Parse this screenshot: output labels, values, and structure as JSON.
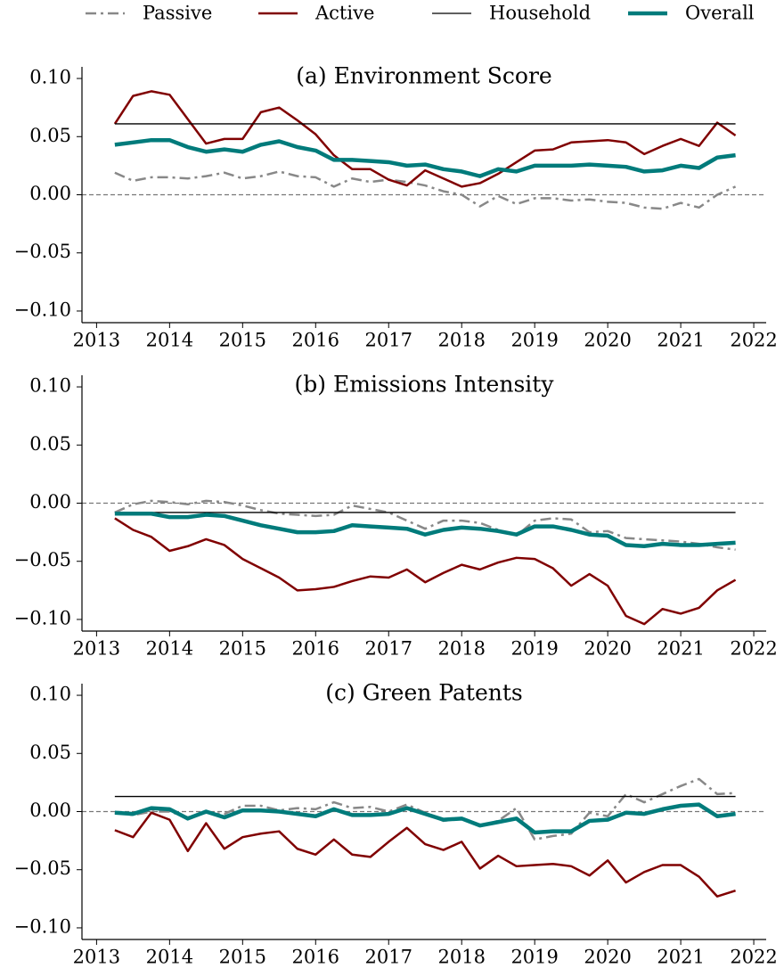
{
  "legend": {
    "ncol": 4
  },
  "chart_data": [
    {
      "type": "line",
      "title": "(a) Environment Score",
      "x": [
        2013.25,
        2013.5,
        2013.75,
        2014,
        2014.25,
        2014.5,
        2014.75,
        2015,
        2015.25,
        2015.5,
        2015.75,
        2016,
        2016.25,
        2016.5,
        2016.75,
        2017,
        2017.25,
        2017.5,
        2017.75,
        2018,
        2018.25,
        2018.5,
        2018.75,
        2019,
        2019.25,
        2019.5,
        2019.75,
        2020,
        2020.25,
        2020.5,
        2020.75,
        2021,
        2021.25,
        2021.5,
        2021.75
      ],
      "xlim": [
        2012.8,
        2022.17
      ],
      "xticks": [
        2013,
        2014,
        2015,
        2016,
        2017,
        2018,
        2019,
        2020,
        2021,
        2022
      ],
      "ylim": [
        -0.11,
        0.11
      ],
      "yticks": [
        {
          "value": -0.1,
          "label": "−0.10"
        },
        {
          "value": -0.05,
          "label": "−0.05"
        },
        {
          "value": 0,
          "label": "0.00"
        },
        {
          "value": 0.05,
          "label": "0.05"
        },
        {
          "value": 0.1,
          "label": "0.10"
        }
      ],
      "zero_line": true,
      "series": [
        {
          "name": "Passive",
          "color": "#888888",
          "linestyle": "dashdot",
          "linewidth": 2.5,
          "values": [
            0.019,
            0.012,
            0.015,
            0.015,
            0.014,
            0.016,
            0.019,
            0.014,
            0.016,
            0.02,
            0.016,
            0.015,
            0.007,
            0.014,
            0.011,
            0.013,
            0.011,
            0.008,
            0.003,
            0.0,
            -0.01,
            -0.001,
            -0.008,
            -0.003,
            -0.003,
            -0.005,
            -0.004,
            -0.006,
            -0.007,
            -0.011,
            -0.012,
            -0.007,
            -0.011,
            0.0,
            0.007
          ]
        },
        {
          "name": "Active",
          "color": "#800000",
          "linestyle": "solid",
          "linewidth": 2.5,
          "values": [
            0.061,
            0.085,
            0.089,
            0.086,
            0.065,
            0.044,
            0.048,
            0.048,
            0.071,
            0.075,
            0.064,
            0.052,
            0.034,
            0.022,
            0.022,
            0.013,
            0.008,
            0.021,
            0.014,
            0.007,
            0.01,
            0.018,
            0.028,
            0.038,
            0.039,
            0.045,
            0.046,
            0.047,
            0.045,
            0.035,
            0.042,
            0.048,
            0.042,
            0.062,
            0.051
          ]
        },
        {
          "name": "Household",
          "color": "#000000",
          "linestyle": "solid",
          "linewidth": 1.3,
          "values": [
            0.061,
            0.061,
            0.061,
            0.061,
            0.061,
            0.061,
            0.061,
            0.061,
            0.061,
            0.061,
            0.061,
            0.061,
            0.061,
            0.061,
            0.061,
            0.061,
            0.061,
            0.061,
            0.061,
            0.061,
            0.061,
            0.061,
            0.061,
            0.061,
            0.061,
            0.061,
            0.061,
            0.061,
            0.061,
            0.061,
            0.061,
            0.061,
            0.061,
            0.061,
            0.061
          ]
        },
        {
          "name": "Overall",
          "color": "#007b7b",
          "linestyle": "solid",
          "linewidth": 4.5,
          "values": [
            0.043,
            0.045,
            0.047,
            0.047,
            0.041,
            0.037,
            0.039,
            0.037,
            0.043,
            0.046,
            0.041,
            0.038,
            0.03,
            0.03,
            0.029,
            0.028,
            0.025,
            0.026,
            0.022,
            0.02,
            0.016,
            0.022,
            0.02,
            0.025,
            0.025,
            0.025,
            0.026,
            0.025,
            0.024,
            0.02,
            0.021,
            0.025,
            0.023,
            0.032,
            0.034
          ]
        }
      ]
    },
    {
      "type": "line",
      "title": "(b) Emissions Intensity",
      "x": [
        2013.25,
        2013.5,
        2013.75,
        2014,
        2014.25,
        2014.5,
        2014.75,
        2015,
        2015.25,
        2015.5,
        2015.75,
        2016,
        2016.25,
        2016.5,
        2016.75,
        2017,
        2017.25,
        2017.5,
        2017.75,
        2018,
        2018.25,
        2018.5,
        2018.75,
        2019,
        2019.25,
        2019.5,
        2019.75,
        2020,
        2020.25,
        2020.5,
        2020.75,
        2021,
        2021.25,
        2021.5,
        2021.75
      ],
      "xlim": [
        2012.8,
        2022.17
      ],
      "xticks": [
        2013,
        2014,
        2015,
        2016,
        2017,
        2018,
        2019,
        2020,
        2021,
        2022
      ],
      "ylim": [
        -0.11,
        0.11
      ],
      "yticks": [
        {
          "value": -0.1,
          "label": "−0.10"
        },
        {
          "value": -0.05,
          "label": "−0.05"
        },
        {
          "value": 0,
          "label": "0.00"
        },
        {
          "value": 0.05,
          "label": "0.05"
        },
        {
          "value": 0.1,
          "label": "0.10"
        }
      ],
      "zero_line": true,
      "series": [
        {
          "color": "#888888",
          "linestyle": "dashdot",
          "linewidth": 2.5,
          "values": [
            -0.008,
            -0.001,
            0.002,
            0.001,
            -0.001,
            0.002,
            0.001,
            -0.002,
            -0.006,
            -0.009,
            -0.01,
            -0.011,
            -0.01,
            -0.002,
            -0.005,
            -0.008,
            -0.015,
            -0.022,
            -0.015,
            -0.015,
            -0.017,
            -0.023,
            -0.028,
            -0.015,
            -0.013,
            -0.014,
            -0.025,
            -0.024,
            -0.03,
            -0.031,
            -0.032,
            -0.033,
            -0.035,
            -0.038,
            -0.04
          ]
        },
        {
          "color": "#800000",
          "linestyle": "solid",
          "linewidth": 2.5,
          "values": [
            -0.013,
            -0.023,
            -0.029,
            -0.041,
            -0.037,
            -0.031,
            -0.036,
            -0.048,
            -0.056,
            -0.064,
            -0.075,
            -0.074,
            -0.072,
            -0.067,
            -0.063,
            -0.064,
            -0.057,
            -0.068,
            -0.06,
            -0.053,
            -0.057,
            -0.051,
            -0.047,
            -0.048,
            -0.056,
            -0.071,
            -0.061,
            -0.071,
            -0.097,
            -0.104,
            -0.091,
            -0.095,
            -0.09,
            -0.075,
            -0.066
          ]
        },
        {
          "color": "#000000",
          "linestyle": "solid",
          "linewidth": 1.3,
          "values": [
            -0.008,
            -0.008,
            -0.008,
            -0.008,
            -0.008,
            -0.008,
            -0.008,
            -0.008,
            -0.008,
            -0.008,
            -0.008,
            -0.008,
            -0.008,
            -0.008,
            -0.008,
            -0.008,
            -0.008,
            -0.008,
            -0.008,
            -0.008,
            -0.008,
            -0.008,
            -0.008,
            -0.008,
            -0.008,
            -0.008,
            -0.008,
            -0.008,
            -0.008,
            -0.008,
            -0.008,
            -0.008,
            -0.008,
            -0.008,
            -0.008
          ]
        },
        {
          "color": "#007b7b",
          "linestyle": "solid",
          "linewidth": 4.5,
          "values": [
            -0.009,
            -0.009,
            -0.009,
            -0.012,
            -0.012,
            -0.01,
            -0.011,
            -0.015,
            -0.019,
            -0.022,
            -0.025,
            -0.025,
            -0.024,
            -0.019,
            -0.02,
            -0.021,
            -0.022,
            -0.027,
            -0.023,
            -0.021,
            -0.022,
            -0.024,
            -0.027,
            -0.02,
            -0.02,
            -0.023,
            -0.027,
            -0.028,
            -0.036,
            -0.037,
            -0.035,
            -0.036,
            -0.036,
            -0.035,
            -0.034
          ]
        }
      ]
    },
    {
      "type": "line",
      "title": "(c) Green Patents",
      "x": [
        2013.25,
        2013.5,
        2013.75,
        2014,
        2014.25,
        2014.5,
        2014.75,
        2015,
        2015.25,
        2015.5,
        2015.75,
        2016,
        2016.25,
        2016.5,
        2016.75,
        2017,
        2017.25,
        2017.5,
        2017.75,
        2018,
        2018.25,
        2018.5,
        2018.75,
        2019,
        2019.25,
        2019.5,
        2019.75,
        2020,
        2020.25,
        2020.5,
        2020.75,
        2021,
        2021.25,
        2021.5,
        2021.75
      ],
      "xlim": [
        2012.8,
        2022.17
      ],
      "xticks": [
        2013,
        2014,
        2015,
        2016,
        2017,
        2018,
        2019,
        2020,
        2021,
        2022
      ],
      "ylim": [
        -0.11,
        0.11
      ],
      "yticks": [
        {
          "value": -0.1,
          "label": "−0.10"
        },
        {
          "value": -0.05,
          "label": "−0.05"
        },
        {
          "value": 0,
          "label": "0.00"
        },
        {
          "value": 0.05,
          "label": "0.05"
        },
        {
          "value": 0.1,
          "label": "0.10"
        }
      ],
      "zero_line": true,
      "series": [
        {
          "color": "#888888",
          "linestyle": "dashdot",
          "linewidth": 2.5,
          "values": [
            -0.001,
            -0.003,
            0.0,
            0.0,
            -0.005,
            -0.001,
            -0.002,
            0.005,
            0.005,
            0.001,
            0.003,
            0.002,
            0.008,
            0.003,
            0.004,
            0.0,
            0.006,
            -0.001,
            -0.008,
            -0.006,
            -0.012,
            -0.008,
            0.003,
            -0.024,
            -0.021,
            -0.019,
            -0.001,
            -0.004,
            0.015,
            0.008,
            0.015,
            0.022,
            0.028,
            0.015,
            0.016
          ]
        },
        {
          "color": "#800000",
          "linestyle": "solid",
          "linewidth": 2.5,
          "values": [
            -0.016,
            -0.022,
            -0.001,
            -0.007,
            -0.034,
            -0.01,
            -0.032,
            -0.022,
            -0.019,
            -0.017,
            -0.032,
            -0.037,
            -0.024,
            -0.037,
            -0.039,
            -0.026,
            -0.014,
            -0.028,
            -0.033,
            -0.026,
            -0.049,
            -0.038,
            -0.047,
            -0.046,
            -0.045,
            -0.047,
            -0.055,
            -0.042,
            -0.061,
            -0.052,
            -0.046,
            -0.046,
            -0.056,
            -0.073,
            -0.068
          ]
        },
        {
          "color": "#000000",
          "linestyle": "solid",
          "linewidth": 1.3,
          "values": [
            0.013,
            0.013,
            0.013,
            0.013,
            0.013,
            0.013,
            0.013,
            0.013,
            0.013,
            0.013,
            0.013,
            0.013,
            0.013,
            0.013,
            0.013,
            0.013,
            0.013,
            0.013,
            0.013,
            0.013,
            0.013,
            0.013,
            0.013,
            0.013,
            0.013,
            0.013,
            0.013,
            0.013,
            0.013,
            0.013,
            0.013,
            0.013,
            0.013,
            0.013,
            0.013
          ]
        },
        {
          "color": "#007b7b",
          "linestyle": "solid",
          "linewidth": 4.5,
          "values": [
            -0.001,
            -0.002,
            0.003,
            0.002,
            -0.006,
            0.0,
            -0.005,
            0.001,
            0.001,
            0.0,
            -0.002,
            -0.004,
            0.002,
            -0.003,
            -0.003,
            -0.002,
            0.003,
            -0.002,
            -0.007,
            -0.006,
            -0.012,
            -0.009,
            -0.006,
            -0.018,
            -0.017,
            -0.017,
            -0.008,
            -0.007,
            -0.001,
            -0.002,
            0.002,
            0.005,
            0.006,
            -0.004,
            -0.002
          ]
        }
      ]
    }
  ]
}
